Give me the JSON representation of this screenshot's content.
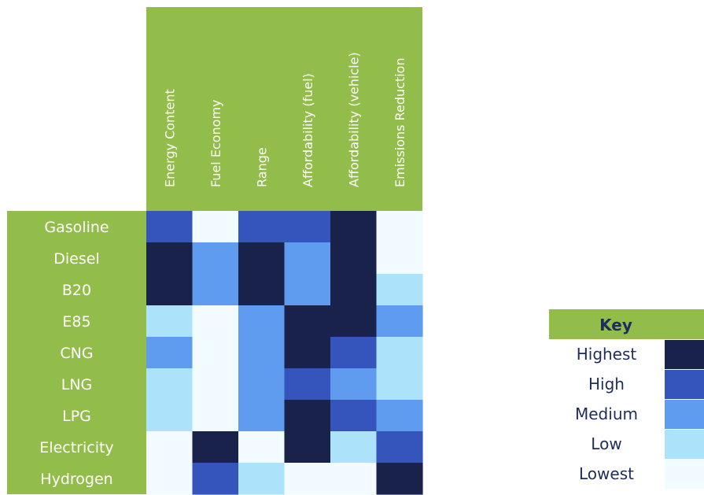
{
  "chart_data": {
    "type": "heatmap",
    "columns": [
      "Energy Content",
      "Fuel Economy",
      "Range",
      "Affordability (fuel)",
      "Affordability (vehicle)",
      "Emissions Reduction"
    ],
    "rows": [
      "Gasoline",
      "Diesel",
      "B20",
      "E85",
      "CNG",
      "LNG",
      "LPG",
      "Electricity",
      "Hydrogen"
    ],
    "values": [
      [
        "High",
        "Lowest",
        "High",
        "High",
        "Highest",
        "Lowest"
      ],
      [
        "Highest",
        "Medium",
        "Highest",
        "Medium",
        "Highest",
        "Lowest"
      ],
      [
        "Highest",
        "Medium",
        "Highest",
        "Medium",
        "Highest",
        "Low"
      ],
      [
        "Low",
        "Lowest",
        "Medium",
        "Highest",
        "Highest",
        "Medium"
      ],
      [
        "Medium",
        "Lowest",
        "Medium",
        "Highest",
        "High",
        "Low"
      ],
      [
        "Low",
        "Lowest",
        "Medium",
        "High",
        "Medium",
        "Low"
      ],
      [
        "Low",
        "Lowest",
        "Medium",
        "Highest",
        "High",
        "Medium"
      ],
      [
        "Lowest",
        "Highest",
        "Lowest",
        "Highest",
        "Low",
        "High"
      ],
      [
        "Lowest",
        "High",
        "Low",
        "Lowest",
        "Lowest",
        "Highest"
      ]
    ],
    "key": {
      "title": "Key",
      "levels": [
        "Highest",
        "High",
        "Medium",
        "Low",
        "Lowest"
      ]
    },
    "colors": {
      "Highest": "#18224b",
      "High": "#3555bd",
      "Medium": "#5f9bef",
      "Low": "#ade2fb",
      "Lowest": "#f2fbff",
      "header": "#93bd4b",
      "key_text": "#1d2d5c"
    }
  }
}
